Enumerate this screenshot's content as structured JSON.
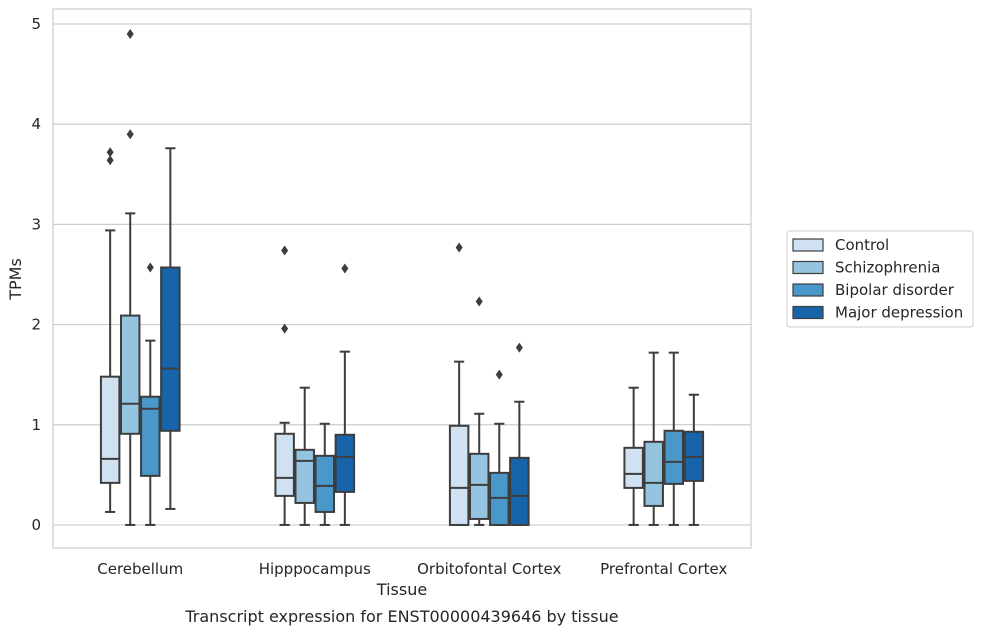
{
  "chart_data": {
    "type": "box",
    "xlabel": "Tissue",
    "ylabel": "TPMs",
    "caption": "Transcript expression for ENST00000439646 by tissue",
    "ylim": [
      -0.23,
      5.15
    ],
    "yticks": [
      0,
      1,
      2,
      3,
      4,
      5
    ],
    "grid": "horizontal",
    "legend_position": "right",
    "categories": [
      "Cerebellum",
      "Hipppocampus",
      "Orbitofontal Cortex",
      "Prefrontal Cortex"
    ],
    "series": [
      {
        "name": "Control",
        "color": "#d0e1f2",
        "boxes": [
          {
            "whisker_low": 0.13,
            "q1": 0.42,
            "median": 0.66,
            "q3": 1.48,
            "whisker_high": 2.94,
            "outliers": [
              3.64,
              3.72
            ]
          },
          {
            "whisker_low": 0.0,
            "q1": 0.29,
            "median": 0.47,
            "q3": 0.91,
            "whisker_high": 1.02,
            "outliers": [
              1.96,
              2.74
            ]
          },
          {
            "whisker_low": 0.0,
            "q1": 0.0,
            "median": 0.37,
            "q3": 0.99,
            "whisker_high": 1.63,
            "outliers": [
              2.77
            ]
          },
          {
            "whisker_low": 0.0,
            "q1": 0.37,
            "median": 0.51,
            "q3": 0.77,
            "whisker_high": 1.37,
            "outliers": []
          }
        ]
      },
      {
        "name": "Schizophrenia",
        "color": "#94c4df",
        "boxes": [
          {
            "whisker_low": 0.0,
            "q1": 0.91,
            "median": 1.21,
            "q3": 2.09,
            "whisker_high": 3.11,
            "outliers": [
              3.9,
              4.9
            ]
          },
          {
            "whisker_low": 0.0,
            "q1": 0.22,
            "median": 0.64,
            "q3": 0.75,
            "whisker_high": 1.37,
            "outliers": []
          },
          {
            "whisker_low": 0.0,
            "q1": 0.06,
            "median": 0.4,
            "q3": 0.71,
            "whisker_high": 1.11,
            "outliers": [
              2.23
            ]
          },
          {
            "whisker_low": 0.0,
            "q1": 0.19,
            "median": 0.42,
            "q3": 0.83,
            "whisker_high": 1.72,
            "outliers": []
          }
        ]
      },
      {
        "name": "Bipolar disorder",
        "color": "#4a98c9",
        "boxes": [
          {
            "whisker_low": 0.0,
            "q1": 0.49,
            "median": 1.16,
            "q3": 1.28,
            "whisker_high": 1.84,
            "outliers": [
              2.57
            ]
          },
          {
            "whisker_low": 0.0,
            "q1": 0.13,
            "median": 0.39,
            "q3": 0.69,
            "whisker_high": 1.01,
            "outliers": []
          },
          {
            "whisker_low": 0.0,
            "q1": 0.0,
            "median": 0.27,
            "q3": 0.52,
            "whisker_high": 1.01,
            "outliers": [
              1.5
            ]
          },
          {
            "whisker_low": 0.0,
            "q1": 0.41,
            "median": 0.63,
            "q3": 0.94,
            "whisker_high": 1.72,
            "outliers": []
          }
        ]
      },
      {
        "name": "Major depression",
        "color": "#1764ab",
        "boxes": [
          {
            "whisker_low": 0.16,
            "q1": 0.94,
            "median": 1.56,
            "q3": 2.57,
            "whisker_high": 3.76,
            "outliers": []
          },
          {
            "whisker_low": 0.0,
            "q1": 0.33,
            "median": 0.68,
            "q3": 0.9,
            "whisker_high": 1.73,
            "outliers": [
              2.56
            ]
          },
          {
            "whisker_low": 0.0,
            "q1": 0.0,
            "median": 0.29,
            "q3": 0.67,
            "whisker_high": 1.23,
            "outliers": [
              1.77
            ]
          },
          {
            "whisker_low": 0.0,
            "q1": 0.44,
            "median": 0.68,
            "q3": 0.93,
            "whisker_high": 1.3,
            "outliers": []
          }
        ]
      }
    ]
  }
}
